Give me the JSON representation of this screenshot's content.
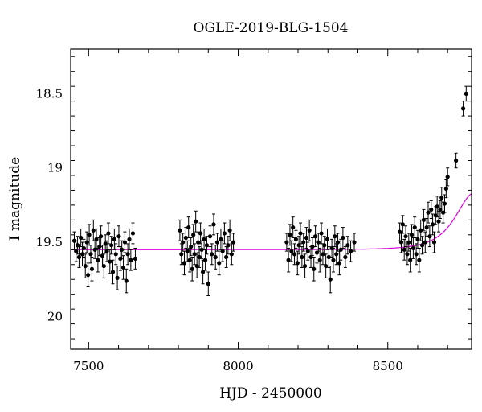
{
  "chart_data": {
    "type": "scatter",
    "title": "OGLE-2019-BLG-1504",
    "xlabel": "HJD - 2450000",
    "ylabel": "I magnitude",
    "xlim": [
      7440,
      8780
    ],
    "ylim": [
      20.22,
      18.2
    ],
    "y_inverted": true,
    "x_ticks": [
      7500,
      8000,
      8500
    ],
    "y_ticks": [
      18.5,
      19,
      19.5,
      20
    ],
    "x_tick_labels": [
      "7500",
      "8000",
      "8500"
    ],
    "y_tick_labels": [
      "18.5",
      "19",
      "19.5",
      "20"
    ],
    "grid": false,
    "colors": {
      "data": "#000000",
      "model": "#e000e0"
    },
    "series": [
      {
        "type": "scatter_with_errors",
        "points": [
          [
            7452,
            19.49,
            0.06
          ],
          [
            7458,
            19.56,
            0.07
          ],
          [
            7463,
            19.52,
            0.06
          ],
          [
            7468,
            19.6,
            0.07
          ],
          [
            7474,
            19.47,
            0.06
          ],
          [
            7479,
            19.58,
            0.08
          ],
          [
            7484,
            19.54,
            0.06
          ],
          [
            7489,
            19.66,
            0.08
          ],
          [
            7494,
            19.5,
            0.07
          ],
          [
            7498,
            19.72,
            0.08
          ],
          [
            7502,
            19.45,
            0.07
          ],
          [
            7507,
            19.58,
            0.06
          ],
          [
            7511,
            19.68,
            0.08
          ],
          [
            7516,
            19.42,
            0.07
          ],
          [
            7521,
            19.55,
            0.06
          ],
          [
            7526,
            19.48,
            0.07
          ],
          [
            7531,
            19.62,
            0.08
          ],
          [
            7536,
            19.53,
            0.06
          ],
          [
            7541,
            19.46,
            0.07
          ],
          [
            7546,
            19.59,
            0.07
          ],
          [
            7551,
            19.66,
            0.08
          ],
          [
            7556,
            19.51,
            0.06
          ],
          [
            7561,
            19.56,
            0.07
          ],
          [
            7566,
            19.44,
            0.07
          ],
          [
            7571,
            19.63,
            0.08
          ],
          [
            7576,
            19.52,
            0.06
          ],
          [
            7581,
            19.7,
            0.08
          ],
          [
            7586,
            19.48,
            0.07
          ],
          [
            7591,
            19.58,
            0.07
          ],
          [
            7596,
            19.74,
            0.08
          ],
          [
            7601,
            19.46,
            0.07
          ],
          [
            7606,
            19.61,
            0.08
          ],
          [
            7611,
            19.55,
            0.06
          ],
          [
            7616,
            19.67,
            0.08
          ],
          [
            7621,
            19.5,
            0.07
          ],
          [
            7626,
            19.76,
            0.08
          ],
          [
            7631,
            19.58,
            0.07
          ],
          [
            7636,
            19.48,
            0.07
          ],
          [
            7641,
            19.62,
            0.07
          ],
          [
            7648,
            19.44,
            0.07
          ],
          [
            7656,
            19.61,
            0.07
          ],
          [
            7805,
            19.42,
            0.07
          ],
          [
            7810,
            19.58,
            0.07
          ],
          [
            7815,
            19.5,
            0.06
          ],
          [
            7820,
            19.64,
            0.08
          ],
          [
            7825,
            19.47,
            0.07
          ],
          [
            7830,
            19.56,
            0.07
          ],
          [
            7834,
            19.4,
            0.07
          ],
          [
            7838,
            19.62,
            0.08
          ],
          [
            7842,
            19.53,
            0.06
          ],
          [
            7846,
            19.68,
            0.08
          ],
          [
            7850,
            19.45,
            0.07
          ],
          [
            7854,
            19.58,
            0.07
          ],
          [
            7858,
            19.36,
            0.07
          ],
          [
            7862,
            19.66,
            0.08
          ],
          [
            7866,
            19.5,
            0.07
          ],
          [
            7870,
            19.6,
            0.07
          ],
          [
            7874,
            19.44,
            0.07
          ],
          [
            7878,
            19.55,
            0.06
          ],
          [
            7882,
            19.7,
            0.08
          ],
          [
            7886,
            19.48,
            0.07
          ],
          [
            7890,
            19.62,
            0.07
          ],
          [
            7895,
            19.52,
            0.06
          ],
          [
            7900,
            19.78,
            0.08
          ],
          [
            7906,
            19.46,
            0.07
          ],
          [
            7912,
            19.58,
            0.07
          ],
          [
            7918,
            19.38,
            0.07
          ],
          [
            7924,
            19.6,
            0.08
          ],
          [
            7930,
            19.5,
            0.06
          ],
          [
            7936,
            19.64,
            0.08
          ],
          [
            7942,
            19.48,
            0.07
          ],
          [
            7948,
            19.56,
            0.07
          ],
          [
            7954,
            19.44,
            0.07
          ],
          [
            7960,
            19.6,
            0.07
          ],
          [
            7966,
            19.52,
            0.06
          ],
          [
            7972,
            19.42,
            0.07
          ],
          [
            7978,
            19.58,
            0.07
          ],
          [
            7984,
            19.5,
            0.06
          ],
          [
            8162,
            19.5,
            0.06
          ],
          [
            8168,
            19.62,
            0.08
          ],
          [
            8173,
            19.45,
            0.07
          ],
          [
            8178,
            19.56,
            0.07
          ],
          [
            8183,
            19.4,
            0.07
          ],
          [
            8188,
            19.58,
            0.07
          ],
          [
            8193,
            19.48,
            0.06
          ],
          [
            8198,
            19.64,
            0.08
          ],
          [
            8203,
            19.52,
            0.06
          ],
          [
            8208,
            19.44,
            0.07
          ],
          [
            8213,
            19.6,
            0.07
          ],
          [
            8218,
            19.5,
            0.06
          ],
          [
            8223,
            19.66,
            0.08
          ],
          [
            8228,
            19.47,
            0.07
          ],
          [
            8233,
            19.56,
            0.06
          ],
          [
            8238,
            19.42,
            0.07
          ],
          [
            8243,
            19.6,
            0.07
          ],
          [
            8248,
            19.53,
            0.06
          ],
          [
            8253,
            19.68,
            0.08
          ],
          [
            8258,
            19.46,
            0.07
          ],
          [
            8263,
            19.57,
            0.07
          ],
          [
            8268,
            19.5,
            0.06
          ],
          [
            8273,
            19.62,
            0.08
          ],
          [
            8278,
            19.44,
            0.07
          ],
          [
            8283,
            19.58,
            0.07
          ],
          [
            8288,
            19.52,
            0.06
          ],
          [
            8293,
            19.66,
            0.08
          ],
          [
            8298,
            19.48,
            0.07
          ],
          [
            8303,
            19.6,
            0.07
          ],
          [
            8308,
            19.75,
            0.09
          ],
          [
            8313,
            19.54,
            0.06
          ],
          [
            8318,
            19.62,
            0.08
          ],
          [
            8323,
            19.46,
            0.07
          ],
          [
            8328,
            19.58,
            0.07
          ],
          [
            8333,
            19.5,
            0.06
          ],
          [
            8338,
            19.64,
            0.08
          ],
          [
            8343,
            19.55,
            0.07
          ],
          [
            8350,
            19.47,
            0.07
          ],
          [
            8358,
            19.6,
            0.07
          ],
          [
            8366,
            19.52,
            0.06
          ],
          [
            8376,
            19.56,
            0.07
          ],
          [
            8388,
            19.5,
            0.06
          ],
          [
            8540,
            19.43,
            0.06
          ],
          [
            8545,
            19.5,
            0.07
          ],
          [
            8550,
            19.38,
            0.06
          ],
          [
            8555,
            19.55,
            0.07
          ],
          [
            8560,
            19.46,
            0.07
          ],
          [
            8565,
            19.58,
            0.07
          ],
          [
            8570,
            19.5,
            0.06
          ],
          [
            8575,
            19.62,
            0.08
          ],
          [
            8580,
            19.45,
            0.07
          ],
          [
            8585,
            19.54,
            0.07
          ],
          [
            8590,
            19.4,
            0.07
          ],
          [
            8595,
            19.58,
            0.07
          ],
          [
            8600,
            19.48,
            0.06
          ],
          [
            8605,
            19.62,
            0.08
          ],
          [
            8610,
            19.42,
            0.07
          ],
          [
            8615,
            19.52,
            0.06
          ],
          [
            8620,
            19.35,
            0.07
          ],
          [
            8625,
            19.5,
            0.07
          ],
          [
            8630,
            19.4,
            0.06
          ],
          [
            8635,
            19.3,
            0.07
          ],
          [
            8640,
            19.46,
            0.07
          ],
          [
            8645,
            19.28,
            0.06
          ],
          [
            8650,
            19.38,
            0.07
          ],
          [
            8655,
            19.5,
            0.07
          ],
          [
            8660,
            19.32,
            0.06
          ],
          [
            8665,
            19.26,
            0.07
          ],
          [
            8670,
            19.36,
            0.07
          ],
          [
            8675,
            19.28,
            0.06
          ],
          [
            8680,
            19.2,
            0.07
          ],
          [
            8685,
            19.3,
            0.07
          ],
          [
            8690,
            19.24,
            0.06
          ],
          [
            8695,
            19.14,
            0.06
          ],
          [
            8700,
            19.06,
            0.06
          ],
          [
            8728,
            18.95,
            0.05
          ],
          [
            8752,
            18.6,
            0.05
          ],
          [
            8762,
            18.5,
            0.05
          ]
        ]
      },
      {
        "type": "model_curve",
        "baseline": 19.55,
        "peak_time": 8790,
        "u0": 0.9,
        "tE": 80
      }
    ]
  }
}
